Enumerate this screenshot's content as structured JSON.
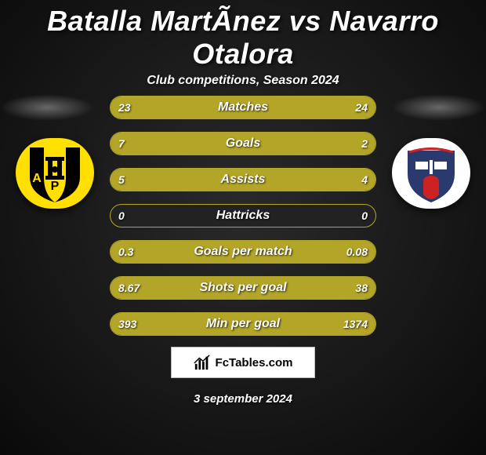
{
  "title": "Batalla MartÃ­nez vs Navarro Otalora",
  "subtitle": "Club competitions, Season 2024",
  "brand": "FcTables.com",
  "date": "3 september 2024",
  "colors": {
    "accent": "#b3a527",
    "bg_center": "#2a2a2a",
    "bg_outer": "#0a0a0a",
    "logo_left_bg": "#ffe000",
    "logo_right_bg": "#ffffff"
  },
  "stats": [
    {
      "label": "Matches",
      "p1": "23",
      "p2": "24",
      "fillLeftPct": 94,
      "fillRightPct": 6
    },
    {
      "label": "Goals",
      "p1": "7",
      "p2": "2",
      "fillLeftPct": 100,
      "fillRightPct": 0
    },
    {
      "label": "Assists",
      "p1": "5",
      "p2": "4",
      "fillLeftPct": 100,
      "fillRightPct": 0
    },
    {
      "label": "Hattricks",
      "p1": "0",
      "p2": "0",
      "fillLeftPct": 0,
      "fillRightPct": 0
    },
    {
      "label": "Goals per match",
      "p1": "0.3",
      "p2": "0.08",
      "fillLeftPct": 83,
      "fillRightPct": 17
    },
    {
      "label": "Shots per goal",
      "p1": "8.67",
      "p2": "38",
      "fillLeftPct": 21,
      "fillRightPct": 79
    },
    {
      "label": "Min per goal",
      "p1": "393",
      "p2": "1374",
      "fillLeftPct": 26,
      "fillRightPct": 74
    }
  ]
}
